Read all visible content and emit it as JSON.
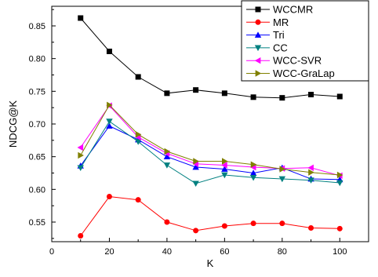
{
  "chart_data": {
    "type": "line",
    "xlabel": "K",
    "ylabel": "NDCG@K",
    "xlim": [
      0,
      110
    ],
    "ylim": [
      0.52,
      0.88
    ],
    "xticks": [
      0,
      20,
      40,
      60,
      80,
      100
    ],
    "yticks": [
      0.55,
      0.6,
      0.65,
      0.7,
      0.75,
      0.8,
      0.85
    ],
    "x": [
      10,
      20,
      30,
      40,
      50,
      60,
      70,
      80,
      90,
      100
    ],
    "legend_position": "top-right",
    "grid": false,
    "series": [
      {
        "name": "WCCMR",
        "color": "#000000",
        "marker": "square",
        "values": [
          0.862,
          0.811,
          0.772,
          0.747,
          0.752,
          0.747,
          0.741,
          0.74,
          0.745,
          0.742
        ]
      },
      {
        "name": "MR",
        "color": "#ff0000",
        "marker": "circle",
        "values": [
          0.529,
          0.589,
          0.584,
          0.55,
          0.537,
          0.544,
          0.548,
          0.548,
          0.541,
          0.54
        ]
      },
      {
        "name": "Tri",
        "color": "#0000ff",
        "marker": "triangle-up",
        "values": [
          0.636,
          0.697,
          0.676,
          0.65,
          0.634,
          0.631,
          0.625,
          0.633,
          0.616,
          0.615
        ]
      },
      {
        "name": "CC",
        "color": "#008080",
        "marker": "triangle-down",
        "values": [
          0.633,
          0.704,
          0.673,
          0.637,
          0.609,
          0.622,
          0.618,
          0.616,
          0.614,
          0.61
        ]
      },
      {
        "name": "WCC-SVR",
        "color": "#ff00ff",
        "marker": "triangle-left",
        "values": [
          0.664,
          0.728,
          0.68,
          0.655,
          0.639,
          0.637,
          0.634,
          0.632,
          0.633,
          0.621
        ]
      },
      {
        "name": "WCC-GraLap",
        "color": "#808000",
        "marker": "triangle-right",
        "values": [
          0.652,
          0.729,
          0.684,
          0.658,
          0.643,
          0.643,
          0.638,
          0.631,
          0.626,
          0.622
        ]
      }
    ]
  }
}
